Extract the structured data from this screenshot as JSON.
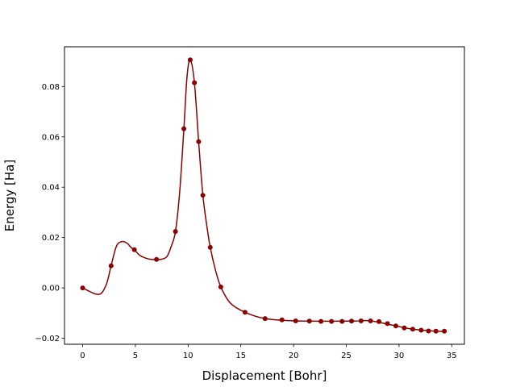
{
  "chart_data": {
    "type": "line",
    "title": "",
    "xlabel": "Displacement [Bohr]",
    "ylabel": "Energy [Ha]",
    "xlim": [
      -1.72,
      36.2
    ],
    "ylim": [
      -0.0224,
      0.0958
    ],
    "xticks": [
      0,
      5,
      10,
      15,
      20,
      25,
      30,
      35
    ],
    "xtick_labels": [
      "0",
      "5",
      "10",
      "15",
      "20",
      "25",
      "30",
      "35"
    ],
    "yticks": [
      -0.02,
      0.0,
      0.02,
      0.04,
      0.06,
      0.08
    ],
    "ytick_labels": [
      "−0.02",
      "0.00",
      "0.02",
      "0.04",
      "0.06",
      "0.08"
    ],
    "grid": false,
    "legend": "none",
    "color": "#8b0000",
    "series": [
      {
        "name": "",
        "markers": "circle",
        "x": [
          0.0,
          2.7,
          4.9,
          7.0,
          8.8,
          9.6,
          10.2,
          10.6,
          11.0,
          11.4,
          12.1,
          13.1,
          15.4,
          17.3,
          18.9,
          20.2,
          21.5,
          22.6,
          23.6,
          24.6,
          25.5,
          26.4,
          27.3,
          28.1,
          28.9,
          29.7,
          30.5,
          31.3,
          32.1,
          32.8,
          33.5,
          34.3
        ],
        "y": [
          0.0,
          0.0088,
          0.0152,
          0.0113,
          0.0224,
          0.0632,
          0.0906,
          0.0815,
          0.0581,
          0.0368,
          0.0161,
          0.0004,
          -0.0097,
          -0.0122,
          -0.0127,
          -0.0131,
          -0.0132,
          -0.0133,
          -0.0133,
          -0.0133,
          -0.0132,
          -0.0131,
          -0.0131,
          -0.0134,
          -0.0142,
          -0.0151,
          -0.0159,
          -0.0164,
          -0.0168,
          -0.0171,
          -0.0172,
          -0.0172
        ]
      }
    ],
    "curve": {
      "x": [
        0.0,
        0.7,
        1.3,
        1.8,
        2.3,
        2.7,
        3.2,
        3.7,
        4.2,
        4.6,
        4.9,
        5.4,
        6.0,
        6.5,
        7.0,
        7.5,
        8.0,
        8.4,
        8.8,
        9.2,
        9.6,
        9.9,
        10.2,
        10.6,
        11.0,
        11.4,
        11.8,
        12.1,
        12.6,
        13.1,
        14.0,
        15.4,
        17.3,
        20.2,
        25.5,
        27.3,
        29.7,
        31.3,
        33.5,
        34.3
      ],
      "y": [
        0.0,
        -0.0015,
        -0.0025,
        -0.002,
        0.002,
        0.0088,
        0.0165,
        0.0184,
        0.0178,
        0.016,
        0.0152,
        0.013,
        0.0118,
        0.0113,
        0.0113,
        0.0114,
        0.0125,
        0.0165,
        0.0224,
        0.038,
        0.0632,
        0.084,
        0.0906,
        0.0815,
        0.0581,
        0.0368,
        0.024,
        0.0161,
        0.007,
        0.0004,
        -0.006,
        -0.0097,
        -0.0122,
        -0.0131,
        -0.0132,
        -0.0131,
        -0.0151,
        -0.0164,
        -0.0172,
        -0.0172
      ]
    }
  }
}
